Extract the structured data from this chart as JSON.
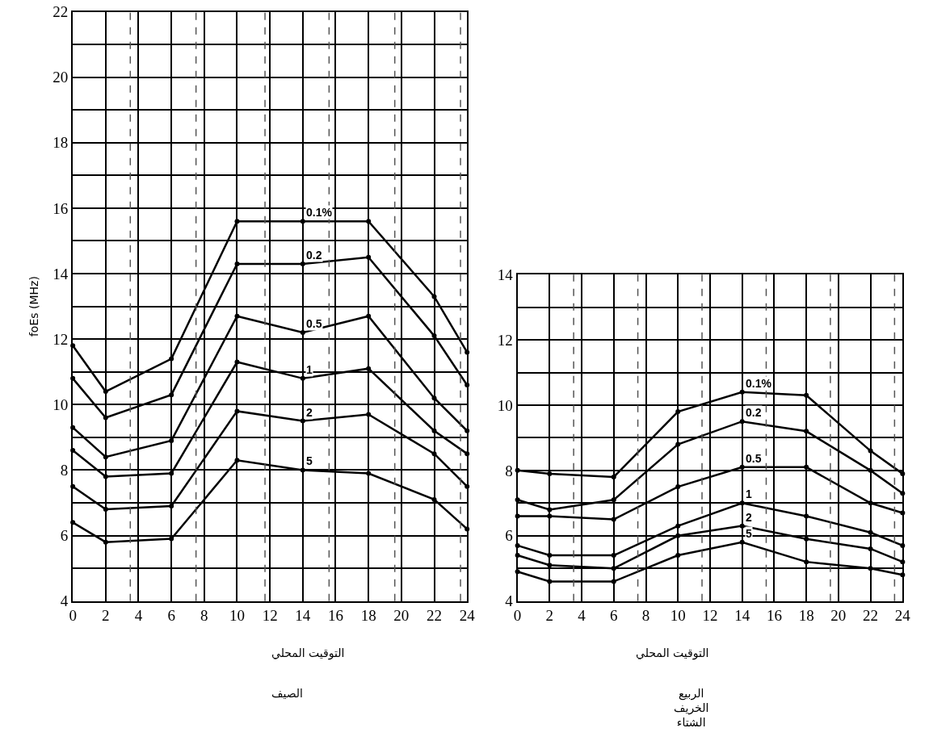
{
  "chart_data": [
    {
      "type": "line",
      "ylabel": "foEs (MHz)",
      "xlabel": "التوقيت المحلي",
      "annotations": [
        "الصيف"
      ],
      "x": [
        0,
        2,
        6,
        10,
        14,
        18,
        22,
        24
      ],
      "xlim": [
        0,
        24
      ],
      "xticks": [
        0,
        2,
        4,
        6,
        8,
        10,
        12,
        14,
        16,
        18,
        20,
        22,
        24
      ],
      "ylim": [
        4,
        22
      ],
      "yticks": [
        4,
        {
          "value": 5,
          "label": null
        },
        6,
        {
          "value": 7,
          "label": null
        },
        8,
        {
          "value": 9,
          "label": null
        },
        10,
        {
          "value": 11,
          "label": null
        },
        12,
        {
          "value": 13,
          "label": null
        },
        14,
        {
          "value": 15,
          "label": null
        },
        16,
        {
          "value": 17,
          "label": null
        },
        18,
        {
          "value": 19,
          "label": null
        },
        20,
        {
          "value": 21,
          "label": null
        },
        22
      ],
      "grid": true,
      "marker": "circle",
      "line_style": "solid",
      "ref_lines": [
        {
          "axis": "x",
          "value": 3.5,
          "color": "#555555",
          "line_style": "dashed"
        },
        {
          "axis": "x",
          "value": 7.5,
          "color": "#555555",
          "line_style": "dashed"
        },
        {
          "axis": "x",
          "value": 11.7,
          "color": "#555555",
          "line_style": "dashed"
        },
        {
          "axis": "x",
          "value": 15.6,
          "color": "#555555",
          "line_style": "dashed"
        },
        {
          "axis": "x",
          "value": 19.6,
          "color": "#555555",
          "line_style": "dashed"
        },
        {
          "axis": "x",
          "value": 23.6,
          "color": "#555555",
          "line_style": "dashed"
        }
      ],
      "series": [
        {
          "name": "0.1%",
          "color": "#000000",
          "values": [
            11.8,
            10.4,
            11.4,
            15.6,
            15.6,
            15.6,
            13.3,
            11.6
          ]
        },
        {
          "name": "0.2",
          "color": "#000000",
          "values": [
            10.8,
            9.6,
            10.3,
            14.3,
            14.3,
            14.5,
            12.1,
            10.6
          ]
        },
        {
          "name": "0.5",
          "color": "#000000",
          "values": [
            9.3,
            8.4,
            8.9,
            12.7,
            12.2,
            12.7,
            10.2,
            9.2
          ]
        },
        {
          "name": "1",
          "color": "#000000",
          "values": [
            8.6,
            7.8,
            7.9,
            11.3,
            10.8,
            11.1,
            9.2,
            8.5
          ]
        },
        {
          "name": "2",
          "color": "#000000",
          "values": [
            7.5,
            6.8,
            6.9,
            9.8,
            9.5,
            9.7,
            8.5,
            7.5
          ]
        },
        {
          "name": "5",
          "color": "#000000",
          "values": [
            6.4,
            5.8,
            5.9,
            8.3,
            8.0,
            7.9,
            7.1,
            6.2
          ]
        }
      ]
    },
    {
      "type": "line",
      "xlabel": "التوقيت المحلي",
      "annotations": [
        "الربيع\nالخريف\nالشتاء"
      ],
      "x": [
        0,
        2,
        6,
        10,
        14,
        18,
        22,
        24
      ],
      "xlim": [
        0,
        24
      ],
      "xticks": [
        0,
        2,
        4,
        6,
        8,
        10,
        12,
        14,
        16,
        18,
        20,
        22,
        24
      ],
      "ylim": [
        4,
        14
      ],
      "yticks": [
        4,
        {
          "value": 5,
          "label": null
        },
        6,
        {
          "value": 7,
          "label": null
        },
        8,
        {
          "value": 9,
          "label": null
        },
        10,
        {
          "value": 11,
          "label": null
        },
        12,
        {
          "value": 13,
          "label": null
        },
        14
      ],
      "grid": true,
      "marker": "circle",
      "line_style": "solid",
      "ref_lines": [
        {
          "axis": "x",
          "value": 3.5,
          "color": "#555555",
          "line_style": "dashed"
        },
        {
          "axis": "x",
          "value": 7.5,
          "color": "#555555",
          "line_style": "dashed"
        },
        {
          "axis": "x",
          "value": 11.5,
          "color": "#555555",
          "line_style": "dashed"
        },
        {
          "axis": "x",
          "value": 15.5,
          "color": "#555555",
          "line_style": "dashed"
        },
        {
          "axis": "x",
          "value": 19.5,
          "color": "#555555",
          "line_style": "dashed"
        },
        {
          "axis": "x",
          "value": 23.5,
          "color": "#555555",
          "line_style": "dashed"
        }
      ],
      "series": [
        {
          "name": "0.1%",
          "color": "#000000",
          "values": [
            8.0,
            7.9,
            7.8,
            9.8,
            10.4,
            10.3,
            8.6,
            7.9
          ]
        },
        {
          "name": "0.2",
          "color": "#000000",
          "values": [
            7.1,
            6.8,
            7.1,
            8.8,
            9.5,
            9.2,
            8.0,
            7.3
          ]
        },
        {
          "name": "0.5",
          "color": "#000000",
          "values": [
            6.6,
            6.6,
            6.5,
            7.5,
            8.1,
            8.1,
            7.0,
            6.7
          ]
        },
        {
          "name": "1",
          "color": "#000000",
          "values": [
            5.7,
            5.4,
            5.4,
            6.3,
            7.0,
            6.6,
            6.1,
            5.7
          ]
        },
        {
          "name": "2",
          "color": "#000000",
          "values": [
            5.4,
            5.1,
            5.0,
            6.0,
            6.3,
            5.9,
            5.6,
            5.2
          ]
        },
        {
          "name": "5",
          "color": "#000000",
          "values": [
            4.9,
            4.6,
            4.6,
            5.4,
            5.8,
            5.2,
            5.0,
            4.8
          ]
        }
      ]
    }
  ]
}
